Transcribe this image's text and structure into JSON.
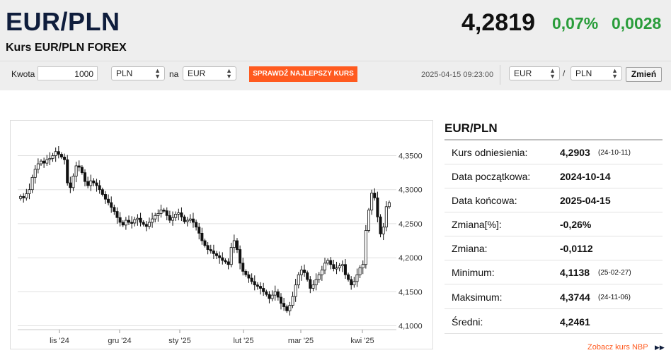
{
  "header": {
    "pair": "EUR/PLN",
    "subtitle": "Kurs EUR/PLN FOREX",
    "rate": "4,2819",
    "change_pct": "0,07%",
    "change_abs": "0,0028"
  },
  "converter": {
    "amount_label": "Kwota",
    "amount_value": "1000",
    "from_currency": "PLN",
    "na_label": "na",
    "to_currency": "EUR",
    "best_rate_button": "SPRAWDŹ NAJLEPSZY KURS"
  },
  "pair_selector": {
    "timestamp": "2025-04-15 09:23:00",
    "base": "EUR",
    "separator": "/",
    "quote": "PLN",
    "change_button": "Zmień"
  },
  "chart_data": {
    "type": "candlestick",
    "x_tick_labels": [
      "lis '24",
      "gru '24",
      "sty '25",
      "lut '25",
      "mar '25",
      "kwi '25"
    ],
    "y_tick_labels": [
      "4,1000",
      "4,1500",
      "4,2000",
      "4,2500",
      "4,3000",
      "4,3500"
    ],
    "y_ticks": [
      4.1,
      4.15,
      4.2,
      4.25,
      4.3,
      4.35
    ],
    "ylim": [
      4.1,
      4.37
    ],
    "grid": true,
    "close_approx": [
      4.29,
      4.288,
      4.294,
      4.3,
      4.318,
      4.33,
      4.338,
      4.342,
      4.339,
      4.344,
      4.346,
      4.35,
      4.356,
      4.352,
      4.348,
      4.344,
      4.31,
      4.303,
      4.32,
      4.335,
      4.333,
      4.325,
      4.312,
      4.306,
      4.313,
      4.31,
      4.306,
      4.3,
      4.293,
      4.286,
      4.281,
      4.274,
      4.268,
      4.259,
      4.252,
      4.248,
      4.255,
      4.252,
      4.251,
      4.256,
      4.258,
      4.252,
      4.249,
      4.246,
      4.252,
      4.257,
      4.262,
      4.265,
      4.27,
      4.269,
      4.262,
      4.255,
      4.259,
      4.264,
      4.266,
      4.26,
      4.253,
      4.255,
      4.257,
      4.252,
      4.245,
      4.236,
      4.225,
      4.218,
      4.212,
      4.21,
      4.206,
      4.203,
      4.2,
      4.196,
      4.194,
      4.19,
      4.215,
      4.225,
      4.212,
      4.192,
      4.18,
      4.175,
      4.17,
      4.165,
      4.16,
      4.158,
      4.155,
      4.15,
      4.146,
      4.14,
      4.145,
      4.15,
      4.142,
      4.133,
      4.128,
      4.122,
      4.13,
      4.143,
      4.16,
      4.175,
      4.182,
      4.178,
      4.168,
      4.155,
      4.16,
      4.168,
      4.175,
      4.182,
      4.192,
      4.196,
      4.19,
      4.184,
      4.185,
      4.188,
      4.19,
      4.175,
      4.168,
      4.16,
      4.165,
      4.175,
      4.185,
      4.19,
      4.24,
      4.27,
      4.295,
      4.288,
      4.26,
      4.235,
      4.245,
      4.275,
      4.281
    ]
  },
  "info": {
    "title": "EUR/PLN",
    "rows": [
      {
        "label": "Kurs odniesienia:",
        "value": "4,2903",
        "date": "(24-10-11)"
      },
      {
        "label": "Data początkowa:",
        "value": "2024-10-14"
      },
      {
        "label": "Data końcowa:",
        "value": "2025-04-15"
      },
      {
        "label": "Zmiana[%]:",
        "value": "-0,26%"
      },
      {
        "label": "Zmiana:",
        "value": "-0,0112"
      },
      {
        "label": "Minimum:",
        "value": "4,1138",
        "date": "(25-02-27)"
      },
      {
        "label": "Maksimum:",
        "value": "4,3744",
        "date": "(24-11-06)"
      },
      {
        "label": "Średni:",
        "value": "4,2461"
      }
    ],
    "nbp_link": "Zobacz kurs NBP"
  },
  "colors": {
    "accent_orange": "#ff5a1f",
    "positive_green": "#2a9d3b",
    "navy": "#0f1d3c"
  }
}
